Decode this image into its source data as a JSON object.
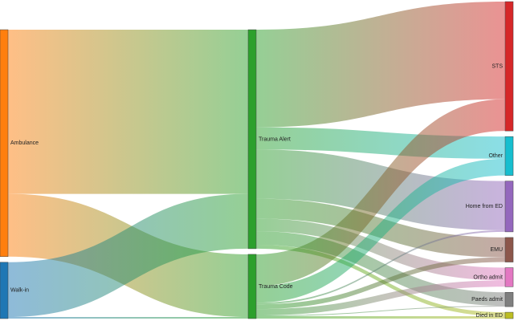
{
  "chart_data": {
    "type": "sankey",
    "nodes": [
      {
        "name": "Ambulance",
        "color": "#ff7f0e"
      },
      {
        "name": "Walk-in",
        "color": "#1f77b4"
      },
      {
        "name": "Trauma Alert",
        "color": "#2ca02c"
      },
      {
        "name": "Trauma Code",
        "color": "#2ca02c"
      },
      {
        "name": "STS",
        "color": "#d62728"
      },
      {
        "name": "Other",
        "color": "#17becf"
      },
      {
        "name": "Home from ED",
        "color": "#9467bd"
      },
      {
        "name": "EMU",
        "color": "#8c564b"
      },
      {
        "name": "Ortho admit",
        "color": "#e377c2"
      },
      {
        "name": "Paeds admit",
        "color": "#7f7f7f"
      },
      {
        "name": "Died in ED",
        "color": "#bcbd22"
      }
    ],
    "links": [
      {
        "source": 0,
        "target": 2,
        "value": 207
      },
      {
        "source": 0,
        "target": 3,
        "value": 79
      },
      {
        "source": 1,
        "target": 2,
        "value": 69
      },
      {
        "source": 1,
        "target": 3,
        "value": 2
      },
      {
        "source": 2,
        "target": 4,
        "value": 123
      },
      {
        "source": 2,
        "target": 5,
        "value": 28
      },
      {
        "source": 2,
        "target": 6,
        "value": 62
      },
      {
        "source": 2,
        "target": 7,
        "value": 25
      },
      {
        "source": 2,
        "target": 8,
        "value": 16
      },
      {
        "source": 2,
        "target": 9,
        "value": 17
      },
      {
        "source": 2,
        "target": 10,
        "value": 5
      },
      {
        "source": 3,
        "target": 4,
        "value": 40
      },
      {
        "source": 3,
        "target": 5,
        "value": 21
      },
      {
        "source": 3,
        "target": 6,
        "value": 2
      },
      {
        "source": 3,
        "target": 7,
        "value": 6
      },
      {
        "source": 3,
        "target": 8,
        "value": 8
      },
      {
        "source": 3,
        "target": 9,
        "value": 1
      },
      {
        "source": 3,
        "target": 10,
        "value": 3
      }
    ]
  }
}
